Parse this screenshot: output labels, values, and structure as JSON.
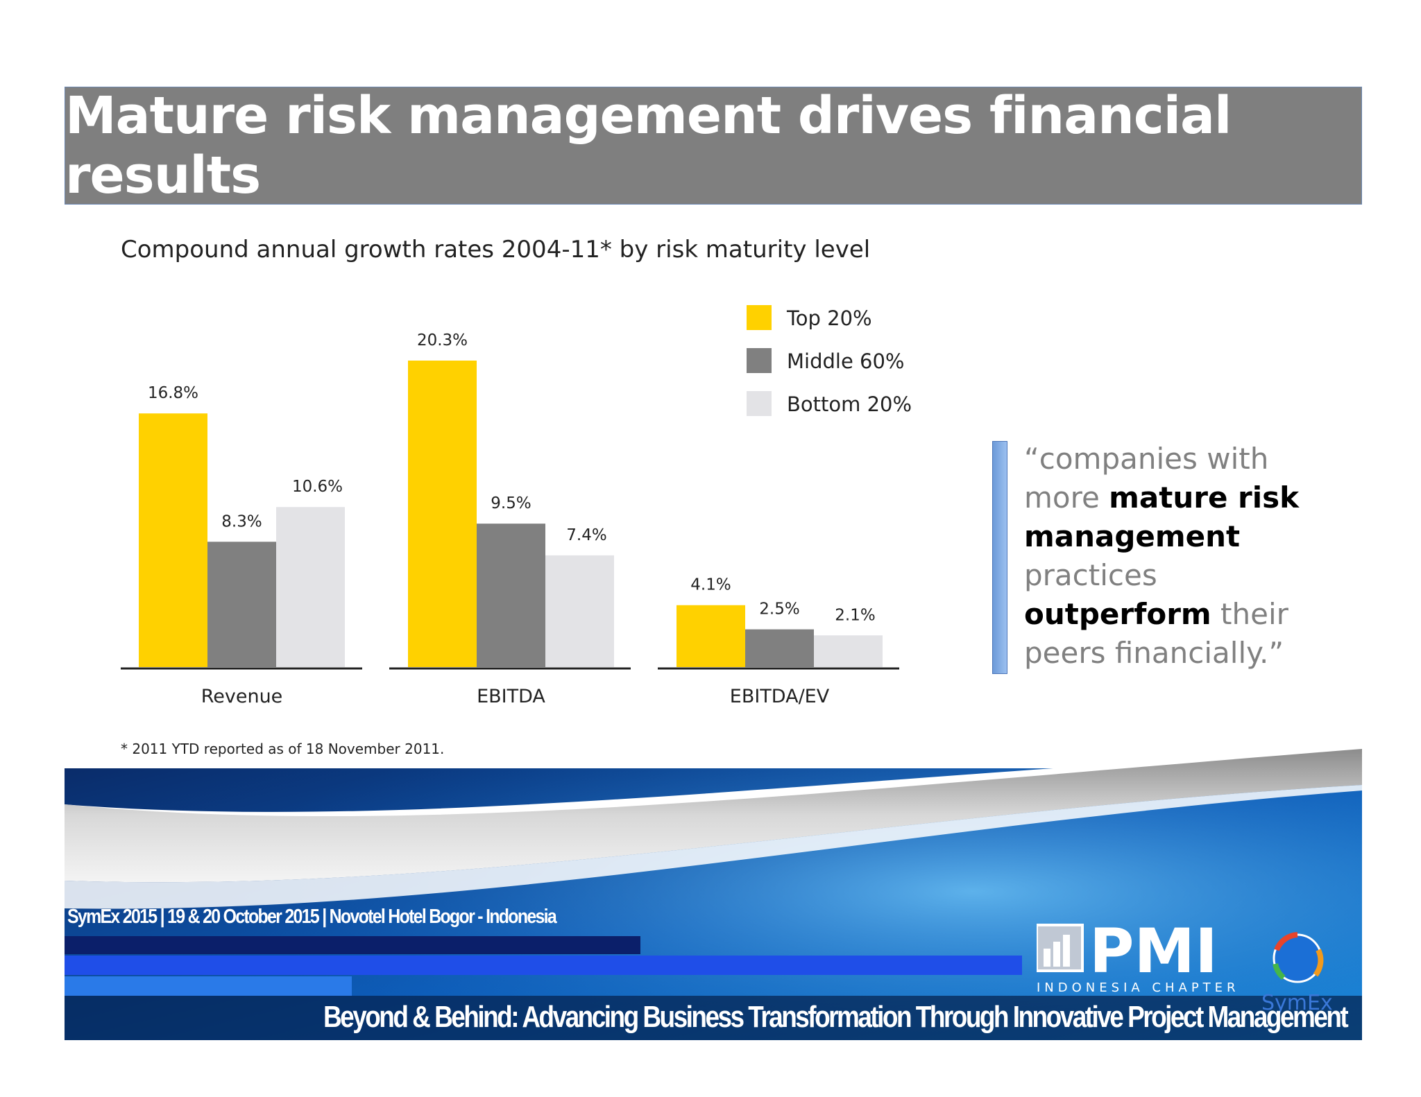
{
  "slide": {
    "title": "Mature risk management drives financial results",
    "chart_subtitle": "Compound annual growth rates 2004-11* by risk maturity level",
    "footnote": "* 2011 YTD reported as of 18 November 2011.",
    "quote": {
      "p1": "“companies with more ",
      "b1": "mature risk management",
      "p2": " practices ",
      "b2": "outperform",
      "p3": " their peers financially.”"
    },
    "footer": {
      "event_line": "SymEx 2015  | 19 & 20 October 2015 | Novotel Hotel Bogor - Indonesia",
      "tagline": "Beyond & Behind: Advancing Business Transformation Through Innovative Project Management",
      "pmi_logo": "PMI",
      "chapter": "INDONESIA CHAPTER",
      "symex_logo": "SymEx"
    }
  },
  "chart_data": {
    "type": "bar",
    "categories": [
      "Revenue",
      "EBITDA",
      "EBITDA/EV"
    ],
    "series": [
      {
        "name": "Top 20%",
        "values": [
          16.8,
          20.3,
          4.1
        ],
        "labels": [
          "16.8%",
          "20.3%",
          "4.1%"
        ],
        "color": "#FFD100"
      },
      {
        "name": "Middle 60%",
        "values": [
          8.3,
          9.5,
          2.5
        ],
        "labels": [
          "8.3%",
          "9.5%",
          "2.5%"
        ],
        "color": "#808080"
      },
      {
        "name": "Bottom 20%",
        "values": [
          10.6,
          7.4,
          2.1
        ],
        "labels": [
          "10.6%",
          "7.4%",
          "2.1%"
        ],
        "color": "#E3E3E6"
      }
    ],
    "ylim": [
      0,
      20.3
    ],
    "legend_position": "top-right",
    "grid": false
  },
  "colors": {
    "title_bar": "#7F7F7F",
    "quote_accent": "#6C9AD8",
    "footer_blue": "#0A4FA8"
  }
}
